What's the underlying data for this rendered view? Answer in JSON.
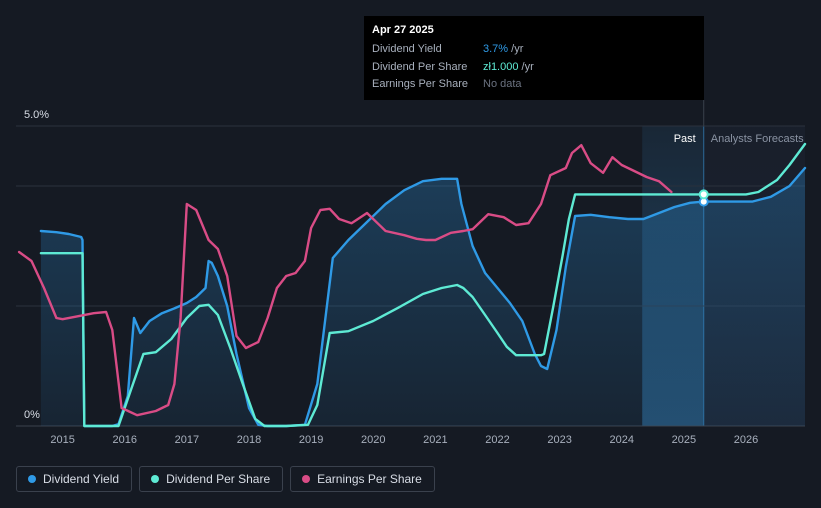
{
  "tooltip": {
    "date": "Apr 27 2025",
    "rows": [
      {
        "label": "Dividend Yield",
        "value": "3.7%",
        "unit": " /yr"
      },
      {
        "label": "Dividend Per Share",
        "value": "zł1.000",
        "unit": " /yr"
      },
      {
        "label": "Earnings Per Share",
        "value": "No data",
        "unit": ""
      }
    ]
  },
  "region_labels": {
    "past": "Past",
    "forecast": "Analysts Forecasts"
  },
  "legend": [
    {
      "label": "Dividend Yield",
      "color": "#2f9ae6"
    },
    {
      "label": "Dividend Per Share",
      "color": "#5eead4"
    },
    {
      "label": "Earnings Per Share",
      "color": "#d94c86"
    }
  ],
  "chart_data": {
    "type": "line",
    "y_axis_labels": [
      "5.0%",
      "0%"
    ],
    "ylim": [
      0,
      5
    ],
    "xlim": [
      2014.25,
      2026.95
    ],
    "x_tick_labels": [
      "2015",
      "2016",
      "2017",
      "2018",
      "2019",
      "2020",
      "2021",
      "2022",
      "2023",
      "2024",
      "2025",
      "2026"
    ],
    "x_tick_values": [
      2015,
      2016,
      2017,
      2018,
      2019,
      2020,
      2021,
      2022,
      2023,
      2024,
      2025,
      2026
    ],
    "forecast_start": 2025.32,
    "past_band_start": 2024.33,
    "grid": true,
    "legend_position": "bottom-left",
    "series": [
      {
        "name": "Dividend Yield",
        "color": "#2f9ae6",
        "fill": true,
        "x": [
          2014.65,
          2014.9,
          2015.1,
          2015.3,
          2015.32,
          2015.35,
          2015.5,
          2015.8,
          2015.9,
          2016.05,
          2016.15,
          2016.25,
          2016.4,
          2016.6,
          2016.8,
          2017.0,
          2017.15,
          2017.3,
          2017.35,
          2017.4,
          2017.5,
          2017.65,
          2017.8,
          2018.0,
          2018.15,
          2018.3,
          2018.6,
          2018.9,
          2019.1,
          2019.35,
          2019.6,
          2019.9,
          2020.2,
          2020.5,
          2020.8,
          2021.1,
          2021.35,
          2021.42,
          2021.6,
          2021.8,
          2022.0,
          2022.2,
          2022.4,
          2022.6,
          2022.7,
          2022.8,
          2022.95,
          2023.1,
          2023.25,
          2023.5,
          2023.8,
          2024.1,
          2024.35,
          2024.6,
          2024.85,
          2025.1,
          2025.32,
          2025.6,
          2025.9,
          2026.1,
          2026.4,
          2026.7,
          2026.95
        ],
        "y": [
          3.25,
          3.23,
          3.2,
          3.15,
          3.1,
          0,
          0,
          0,
          0.03,
          0.5,
          1.8,
          1.55,
          1.75,
          1.88,
          1.96,
          2.05,
          2.15,
          2.3,
          2.75,
          2.72,
          2.5,
          2.0,
          1.2,
          0.3,
          0.02,
          0,
          0,
          0.02,
          0.7,
          2.8,
          3.1,
          3.4,
          3.7,
          3.93,
          4.08,
          4.12,
          4.12,
          3.7,
          3.0,
          2.55,
          2.3,
          2.05,
          1.75,
          1.2,
          1.0,
          0.95,
          1.6,
          2.65,
          3.5,
          3.52,
          3.48,
          3.45,
          3.45,
          3.55,
          3.65,
          3.72,
          3.74,
          3.74,
          3.74,
          3.74,
          3.82,
          4.0,
          4.3
        ]
      },
      {
        "name": "Dividend Per Share",
        "color": "#5eead4",
        "fill": false,
        "x": [
          2014.65,
          2015.1,
          2015.32,
          2015.35,
          2015.5,
          2015.9,
          2016.1,
          2016.3,
          2016.5,
          2016.75,
          2017.0,
          2017.2,
          2017.35,
          2017.5,
          2017.7,
          2017.9,
          2018.1,
          2018.25,
          2018.6,
          2018.95,
          2019.1,
          2019.3,
          2019.6,
          2020.0,
          2020.4,
          2020.8,
          2021.1,
          2021.35,
          2021.45,
          2021.6,
          2021.8,
          2022.0,
          2022.15,
          2022.3,
          2022.7,
          2022.75,
          2022.9,
          2023.05,
          2023.15,
          2023.25,
          2023.4,
          2024.0,
          2024.5,
          2025.0,
          2025.32,
          2025.6,
          2026.0,
          2026.2,
          2026.5,
          2026.7,
          2026.95
        ],
        "y": [
          2.88,
          2.88,
          2.88,
          0,
          0,
          0,
          0.6,
          1.2,
          1.23,
          1.45,
          1.8,
          2.0,
          2.02,
          1.85,
          1.3,
          0.7,
          0.12,
          0,
          0,
          0.02,
          0.35,
          1.55,
          1.58,
          1.75,
          1.97,
          2.2,
          2.3,
          2.35,
          2.3,
          2.15,
          1.85,
          1.55,
          1.32,
          1.18,
          1.18,
          1.2,
          2.0,
          2.85,
          3.45,
          3.86,
          3.86,
          3.86,
          3.86,
          3.86,
          3.86,
          3.86,
          3.86,
          3.9,
          4.1,
          4.35,
          4.7
        ]
      },
      {
        "name": "Earnings Per Share",
        "color": "#d94c86",
        "fill": false,
        "x": [
          2014.3,
          2014.5,
          2014.7,
          2014.9,
          2015.0,
          2015.2,
          2015.5,
          2015.7,
          2015.8,
          2015.95,
          2016.2,
          2016.5,
          2016.7,
          2016.8,
          2016.9,
          2017.0,
          2017.15,
          2017.25,
          2017.35,
          2017.5,
          2017.65,
          2017.8,
          2017.95,
          2018.15,
          2018.3,
          2018.45,
          2018.6,
          2018.75,
          2018.9,
          2019.0,
          2019.15,
          2019.3,
          2019.45,
          2019.65,
          2019.9,
          2020.2,
          2020.5,
          2020.7,
          2020.85,
          2021.0,
          2021.25,
          2021.45,
          2021.6,
          2021.85,
          2022.1,
          2022.3,
          2022.5,
          2022.7,
          2022.85,
          2023.1,
          2023.2,
          2023.35,
          2023.5,
          2023.7,
          2023.85,
          2024.0,
          2024.2,
          2024.4,
          2024.6,
          2024.8
        ],
        "y": [
          2.9,
          2.75,
          2.3,
          1.8,
          1.78,
          1.82,
          1.88,
          1.9,
          1.6,
          0.3,
          0.18,
          0.25,
          0.35,
          0.7,
          1.8,
          3.7,
          3.6,
          3.35,
          3.1,
          2.95,
          2.5,
          1.5,
          1.3,
          1.4,
          1.8,
          2.3,
          2.5,
          2.55,
          2.75,
          3.3,
          3.6,
          3.62,
          3.45,
          3.38,
          3.55,
          3.25,
          3.18,
          3.12,
          3.1,
          3.1,
          3.22,
          3.25,
          3.28,
          3.53,
          3.48,
          3.35,
          3.38,
          3.7,
          4.18,
          4.3,
          4.55,
          4.68,
          4.38,
          4.22,
          4.48,
          4.35,
          4.25,
          4.15,
          4.08,
          3.9
        ]
      }
    ]
  }
}
